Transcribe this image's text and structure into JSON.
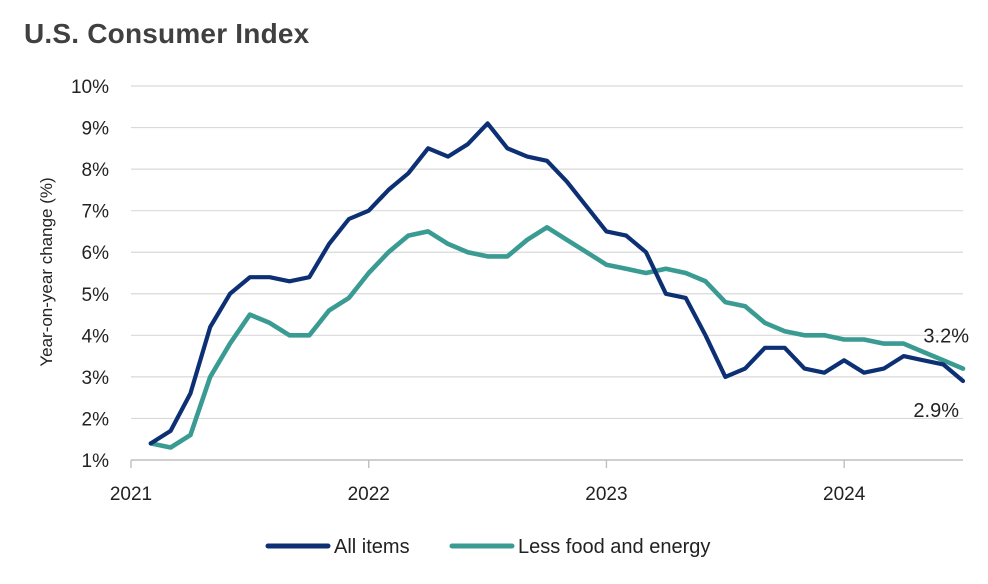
{
  "chart_data": {
    "type": "line",
    "title": "U.S. Consumer Index",
    "ylabel": "Year-on-year change (%)",
    "xlabel": "",
    "ylim": [
      1,
      10
    ],
    "xlim": [
      2021.0,
      2024.5
    ],
    "y_ticks": [
      1,
      2,
      3,
      4,
      5,
      6,
      7,
      8,
      9,
      10
    ],
    "y_tick_labels": [
      "1%",
      "2%",
      "3%",
      "4%",
      "5%",
      "6%",
      "7%",
      "8%",
      "9%",
      "10%"
    ],
    "x_ticks": [
      2021,
      2022,
      2023,
      2024
    ],
    "x_tick_labels": [
      "2021",
      "2022",
      "2023",
      "2024"
    ],
    "grid": "horizontal",
    "legend_position": "bottom",
    "end_labels": {
      "All items": "2.9%",
      "Less food and energy": "3.2%"
    },
    "x": [
      "2021-02",
      "2021-03",
      "2021-04",
      "2021-05",
      "2021-06",
      "2021-07",
      "2021-08",
      "2021-09",
      "2021-10",
      "2021-11",
      "2021-12",
      "2022-01",
      "2022-02",
      "2022-03",
      "2022-04",
      "2022-05",
      "2022-06",
      "2022-07",
      "2022-08",
      "2022-09",
      "2022-10",
      "2022-11",
      "2022-12",
      "2023-01",
      "2023-02",
      "2023-03",
      "2023-04",
      "2023-05",
      "2023-06",
      "2023-07",
      "2023-08",
      "2023-09",
      "2023-10",
      "2023-11",
      "2023-12",
      "2024-01",
      "2024-02",
      "2024-03",
      "2024-04",
      "2024-05",
      "2024-06",
      "2024-07"
    ],
    "series": [
      {
        "name": "All items",
        "color": "#0d3075",
        "values": [
          1.4,
          1.7,
          2.6,
          4.2,
          5.0,
          5.4,
          5.4,
          5.3,
          5.4,
          6.2,
          6.8,
          7.0,
          7.5,
          7.9,
          8.5,
          8.3,
          8.6,
          9.1,
          8.5,
          8.3,
          8.2,
          7.7,
          7.1,
          6.5,
          6.4,
          6.0,
          5.0,
          4.9,
          4.0,
          3.0,
          3.2,
          3.7,
          3.7,
          3.2,
          3.1,
          3.4,
          3.1,
          3.2,
          3.5,
          3.4,
          3.3,
          2.9
        ]
      },
      {
        "name": "Less food and energy",
        "color": "#3a9b93",
        "values": [
          1.4,
          1.3,
          1.6,
          3.0,
          3.8,
          4.5,
          4.3,
          4.0,
          4.0,
          4.6,
          4.9,
          5.5,
          6.0,
          6.4,
          6.5,
          6.2,
          6.0,
          5.9,
          5.9,
          6.3,
          6.6,
          6.3,
          6.0,
          5.7,
          5.6,
          5.5,
          5.6,
          5.5,
          5.3,
          4.8,
          4.7,
          4.3,
          4.1,
          4.0,
          4.0,
          3.9,
          3.9,
          3.8,
          3.8,
          3.6,
          3.4,
          3.2
        ]
      }
    ]
  }
}
